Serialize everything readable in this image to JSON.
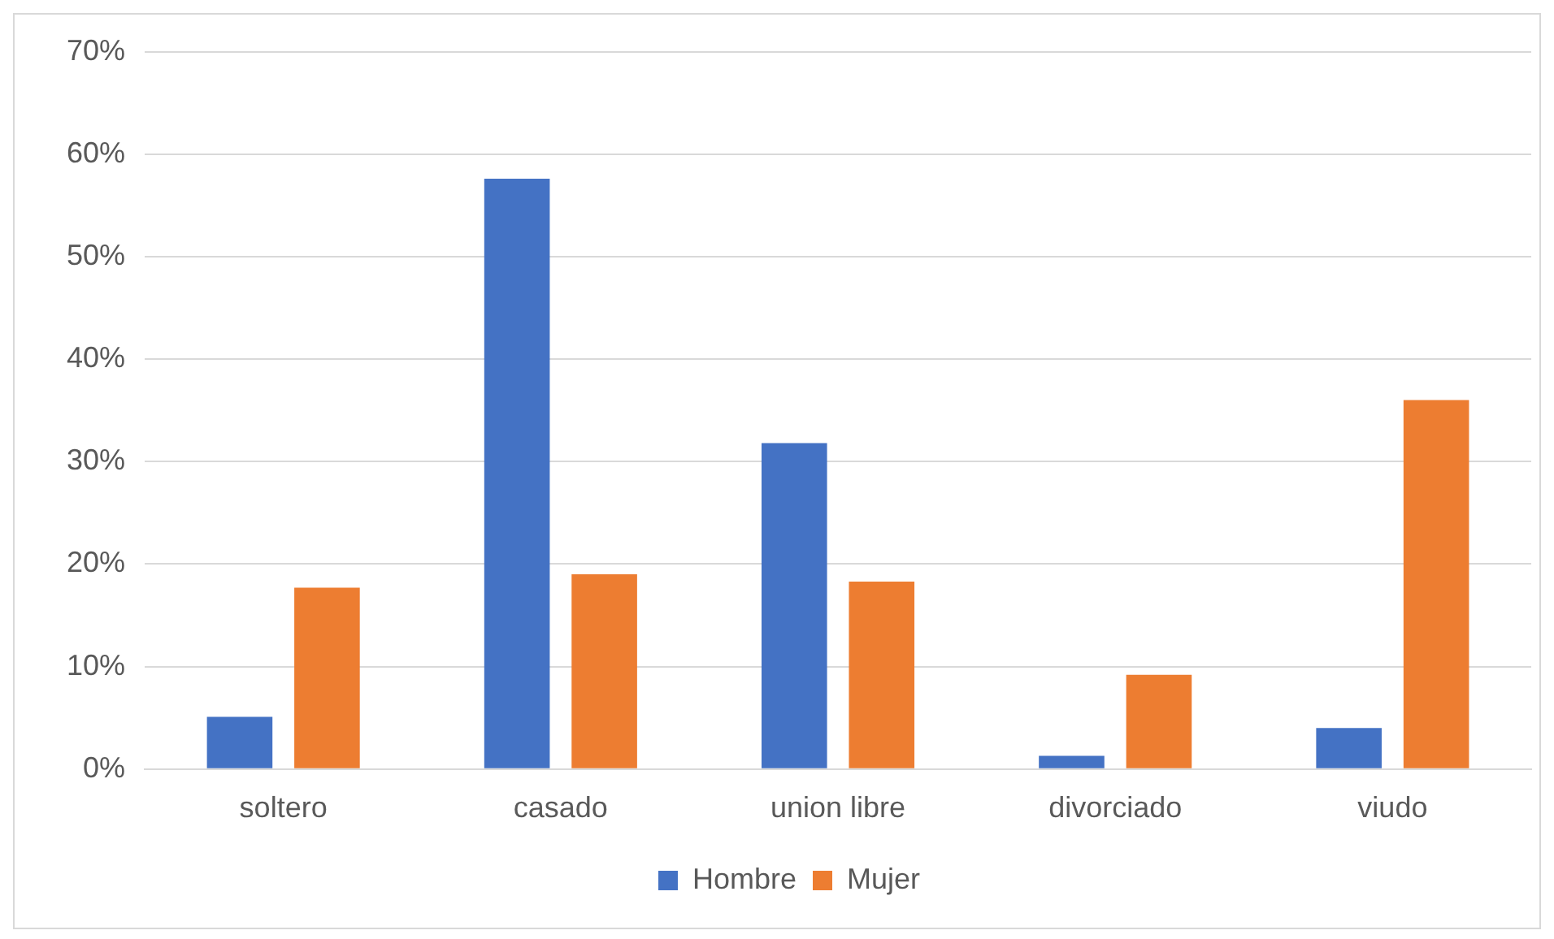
{
  "chart_data": {
    "type": "bar",
    "categories": [
      "soltero",
      "casado",
      "union libre",
      "divorciado",
      "viudo"
    ],
    "series": [
      {
        "name": "Hombre",
        "color": "#4472c4",
        "values": [
          5.1,
          57.6,
          31.8,
          1.3,
          4.0
        ]
      },
      {
        "name": "Mujer",
        "color": "#ed7d31",
        "values": [
          17.7,
          19.0,
          18.3,
          9.2,
          36.0
        ]
      }
    ],
    "ylim": [
      0,
      70
    ],
    "yticks": [
      {
        "value": 0,
        "label": "0%"
      },
      {
        "value": 10,
        "label": "10%"
      },
      {
        "value": 20,
        "label": "20%"
      },
      {
        "value": 30,
        "label": "30%"
      },
      {
        "value": 40,
        "label": "40%"
      },
      {
        "value": 50,
        "label": "50%"
      },
      {
        "value": 60,
        "label": "60%"
      },
      {
        "value": 70,
        "label": "70%"
      }
    ],
    "grid": "y",
    "legend": "bottom"
  }
}
